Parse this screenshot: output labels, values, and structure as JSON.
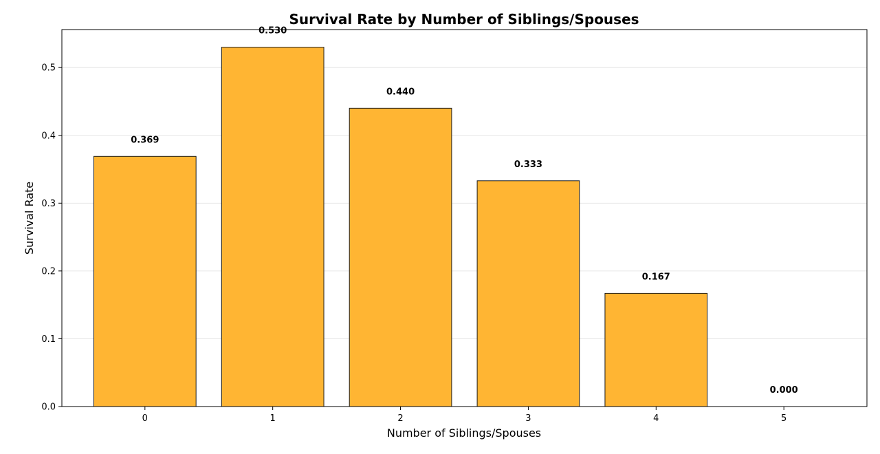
{
  "chart_data": {
    "type": "bar",
    "title": "Survival Rate by Number of Siblings/Spouses",
    "xlabel": "Number of Siblings/Spouses",
    "ylabel": "Survival Rate",
    "categories": [
      "0",
      "1",
      "2",
      "3",
      "4",
      "5"
    ],
    "values": [
      0.369,
      0.53,
      0.44,
      0.333,
      0.167,
      0.0
    ],
    "data_labels": [
      "0.369",
      "0.530",
      "0.440",
      "0.333",
      "0.167",
      "0.000"
    ],
    "ylim": [
      0,
      0.556
    ],
    "yticks": [
      0.0,
      0.1,
      0.2,
      0.3,
      0.4,
      0.5
    ],
    "ytick_labels": [
      "0.0",
      "0.1",
      "0.2",
      "0.3",
      "0.4",
      "0.5"
    ],
    "grid": "y",
    "legend": "none",
    "bar_color": "#FFB533",
    "edge_color": "#1a1a1a"
  }
}
